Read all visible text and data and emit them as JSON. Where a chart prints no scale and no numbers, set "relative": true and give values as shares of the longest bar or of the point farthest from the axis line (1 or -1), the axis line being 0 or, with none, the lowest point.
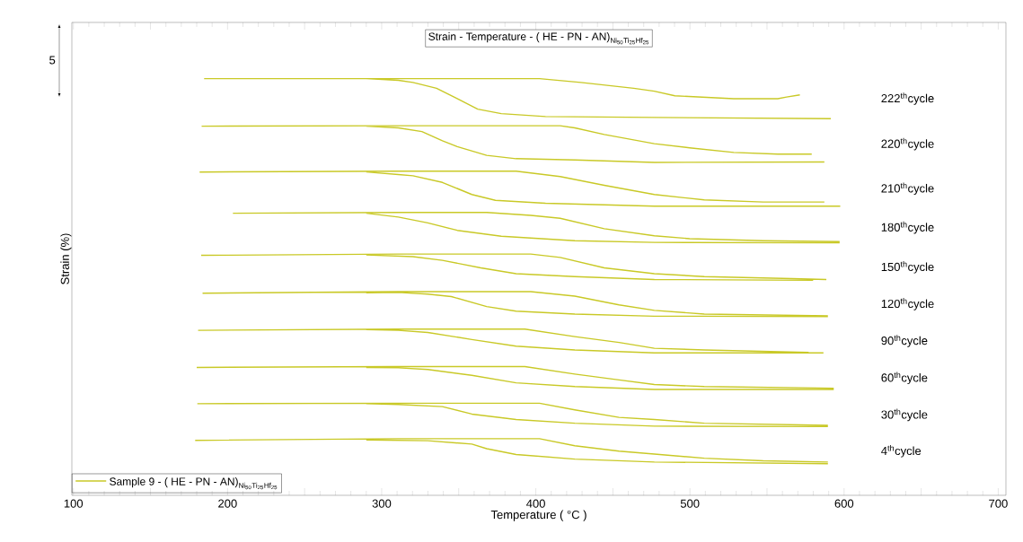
{
  "chart_data": {
    "type": "line",
    "title": "\\text{Strain - Temperature - ( HE - PN - AN)}_{\\text{Ni}_{\\text{50}}\\text{Ti}_{\\text{25}}\\text{Hf}_{\\text{25}}}",
    "xlabel": "Temperature ( °C )",
    "ylabel": "Strain (%)",
    "relative": true,
    "xlim": [
      99,
      705
    ],
    "xticks": [
      100,
      {
        "value": 150,
        "label": null
      },
      200,
      {
        "value": 250,
        "label": null
      },
      300,
      {
        "value": 350,
        "label": null
      },
      400,
      {
        "value": 450,
        "label": null
      },
      500,
      {
        "value": 550,
        "label": null
      },
      600,
      {
        "value": 650,
        "label": null
      },
      700
    ],
    "annotations": [
      "5",
      "\\text{Sample 9 - ( HE - PN - AN)}_{\\text{Ni}_{\\text{50}}\\text{Ti}_{\\text{25}}\\text{Hf}_{\\text{25}}}"
    ],
    "series": [
      {
        "name": "222$^{th}$cycle",
        "color": "#c9c927",
        "x": [
          184.8,
          310.8,
          402.4,
          429.2,
          463.5,
          476.9,
          490.2,
          528.4,
          557.0,
          562.7,
          571.3,
          null,
          591.4,
          476.9,
          406.3,
          377.6,
          362.3,
          349.0,
          335.6,
          320.3,
          310.8,
          290
        ],
        "values": [
          1.0,
          1.0,
          1.0,
          0.991,
          0.977,
          0.97,
          0.959,
          0.952,
          0.952,
          0.956,
          0.961,
          null,
          0.904,
          0.907,
          0.909,
          0.916,
          0.927,
          0.952,
          0.977,
          0.991,
          0.996,
          1.0
        ]
      },
      {
        "name": "220$^{th}$cycle",
        "color": "#c9c927",
        "x": [
          183.2,
          310.8,
          415.8,
          425.3,
          444.4,
          476.9,
          499.8,
          528.4,
          557.0,
          579.0,
          null,
          587.2,
          476.9,
          425.3,
          387.2,
          368.1,
          349.0,
          339.4,
          326.1,
          310.8,
          290
        ],
        "values": [
          0.886,
          0.887,
          0.887,
          0.882,
          0.866,
          0.844,
          0.834,
          0.823,
          0.819,
          0.819,
          null,
          0.8,
          0.799,
          0.805,
          0.808,
          0.816,
          0.837,
          0.851,
          0.873,
          0.882,
          0.886
        ]
      },
      {
        "name": "210$^{th}$cycle",
        "color": "#c9c927",
        "x": [
          181.9,
          310.8,
          387.2,
          415.8,
          444.4,
          476.9,
          509.3,
          547.5,
          587.2,
          null,
          597.5,
          476.9,
          406.3,
          373.8,
          358.5,
          339.4,
          320.3,
          310.8,
          290
        ],
        "values": [
          0.776,
          0.778,
          0.778,
          0.765,
          0.744,
          0.722,
          0.709,
          0.704,
          0.704,
          null,
          0.694,
          0.694,
          0.701,
          0.708,
          0.722,
          0.751,
          0.767,
          0.77,
          0.776
        ]
      },
      {
        "name": "180$^{th}$cycle",
        "color": "#c9c927",
        "x": [
          203.5,
          310.8,
          368.1,
          396.7,
          415.8,
          444.4,
          476.9,
          499.8,
          547.5,
          597.1,
          null,
          597.1,
          476.9,
          425.3,
          377.6,
          349.0,
          329.9,
          310.8,
          290
        ],
        "values": [
          0.677,
          0.679,
          0.679,
          0.672,
          0.665,
          0.64,
          0.623,
          0.616,
          0.611,
          0.609,
          null,
          0.606,
          0.607,
          0.611,
          0.622,
          0.636,
          0.654,
          0.668,
          0.677
        ]
      },
      {
        "name": "150$^{th}$cycle",
        "color": "#c9c927",
        "x": [
          182.9,
          310.8,
          396.7,
          415.8,
          444.4,
          476.9,
          509.3,
          566.5,
          588.5,
          null,
          579.9,
          476.9,
          425.3,
          387.2,
          364.3,
          339.4,
          320.3,
          290
        ],
        "values": [
          0.576,
          0.579,
          0.579,
          0.571,
          0.546,
          0.532,
          0.525,
          0.52,
          0.518,
          null,
          0.516,
          0.518,
          0.525,
          0.532,
          0.546,
          0.564,
          0.573,
          0.577
        ]
      },
      {
        "name": "120$^{th}$cycle",
        "color": "#c9c927",
        "x": [
          183.8,
          310.8,
          396.7,
          425.3,
          454.0,
          476.9,
          509.3,
          589.5,
          null,
          589.5,
          476.9,
          425.3,
          387.2,
          368.1,
          345.2,
          329.9,
          310.8,
          290
        ],
        "values": [
          0.485,
          0.489,
          0.489,
          0.478,
          0.457,
          0.444,
          0.435,
          0.431,
          null,
          0.429,
          0.43,
          0.435,
          0.442,
          0.453,
          0.477,
          0.483,
          0.487,
          0.486
        ]
      },
      {
        "name": "90$^{th}$cycle",
        "color": "#c9c927",
        "x": [
          180.9,
          310.8,
          392.9,
          425.3,
          454.0,
          476.9,
          509.3,
          577.0,
          null,
          586.6,
          476.9,
          425.3,
          387.2,
          358.5,
          329.9,
          310.8,
          290
        ],
        "values": [
          0.396,
          0.399,
          0.399,
          0.381,
          0.367,
          0.353,
          0.349,
          0.343,
          null,
          0.342,
          0.342,
          0.349,
          0.358,
          0.374,
          0.391,
          0.396,
          0.398
        ]
      },
      {
        "name": "60$^{th}$cycle",
        "color": "#c9c927",
        "x": [
          180.0,
          310.8,
          392.9,
          425.3,
          454.0,
          476.9,
          509.3,
          593.3,
          null,
          593.3,
          476.9,
          425.3,
          387.2,
          358.5,
          329.9,
          310.8,
          290
        ],
        "values": [
          0.307,
          0.309,
          0.309,
          0.291,
          0.277,
          0.266,
          0.261,
          0.257,
          null,
          0.254,
          0.254,
          0.261,
          0.27,
          0.288,
          0.302,
          0.306,
          0.307
        ]
      },
      {
        "name": "30$^{th}$cycle",
        "color": "#c9c927",
        "x": [
          180.4,
          310.8,
          402.4,
          425.3,
          454.0,
          476.9,
          509.3,
          589.5,
          null,
          589.5,
          476.9,
          425.3,
          387.2,
          358.5,
          339.4,
          310.8,
          290
        ],
        "values": [
          0.22,
          0.221,
          0.221,
          0.205,
          0.187,
          0.182,
          0.173,
          0.168,
          null,
          0.165,
          0.166,
          0.173,
          0.182,
          0.195,
          0.213,
          0.218,
          0.22
        ]
      },
      {
        "name": "4$^{th}$cycle",
        "color": "#c9c927",
        "x": [
          179.0,
          310.8,
          402.4,
          425.3,
          454.0,
          476.9,
          509.3,
          547.5,
          589.5,
          null,
          589.5,
          476.9,
          425.3,
          387.2,
          368.1,
          358.5,
          329.9,
          290
        ],
        "values": [
          0.132,
          0.136,
          0.136,
          0.119,
          0.106,
          0.099,
          0.089,
          0.083,
          0.08,
          null,
          0.076,
          0.08,
          0.087,
          0.098,
          0.112,
          0.123,
          0.131,
          0.133
        ]
      }
    ]
  }
}
